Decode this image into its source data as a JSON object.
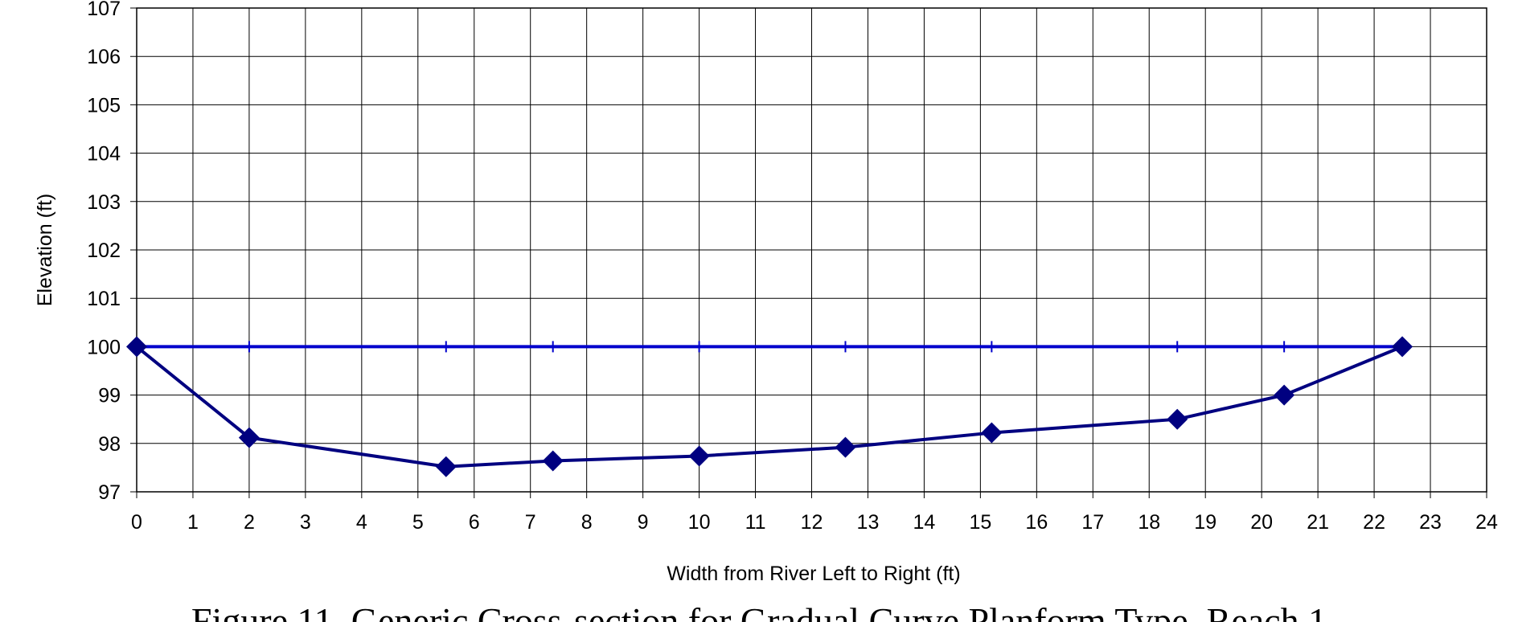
{
  "chart_data": {
    "type": "line",
    "title": "Figure 11.  Generic Cross-section for Gradual Curve Planform Type, Reach 1",
    "x_label": "Width from River Left to Right (ft)",
    "y_label": "Elevation (ft)",
    "x": [
      0,
      2,
      5.5,
      7.4,
      10,
      12.6,
      15.2,
      18.5,
      20.4,
      22.5
    ],
    "series": [
      {
        "color": "#000080",
        "marker": "diamond",
        "values": [
          100,
          98.12,
          97.52,
          97.64,
          97.74,
          97.92,
          98.22,
          98.5,
          99.0,
          100
        ]
      },
      {
        "color": "#0000cc",
        "marker": "tick",
        "values": [
          100,
          100,
          100,
          100,
          100,
          100,
          100,
          100,
          100,
          100
        ]
      }
    ],
    "xlim": [
      0,
      24
    ],
    "xticks": [
      0,
      1,
      2,
      3,
      4,
      5,
      6,
      7,
      8,
      9,
      10,
      11,
      12,
      13,
      14,
      15,
      16,
      17,
      18,
      19,
      20,
      21,
      22,
      23,
      24
    ],
    "ylim": [
      97,
      107
    ],
    "yticks": [
      97,
      98,
      99,
      100,
      101,
      102,
      103,
      104,
      105,
      106,
      107
    ],
    "grid": true
  }
}
